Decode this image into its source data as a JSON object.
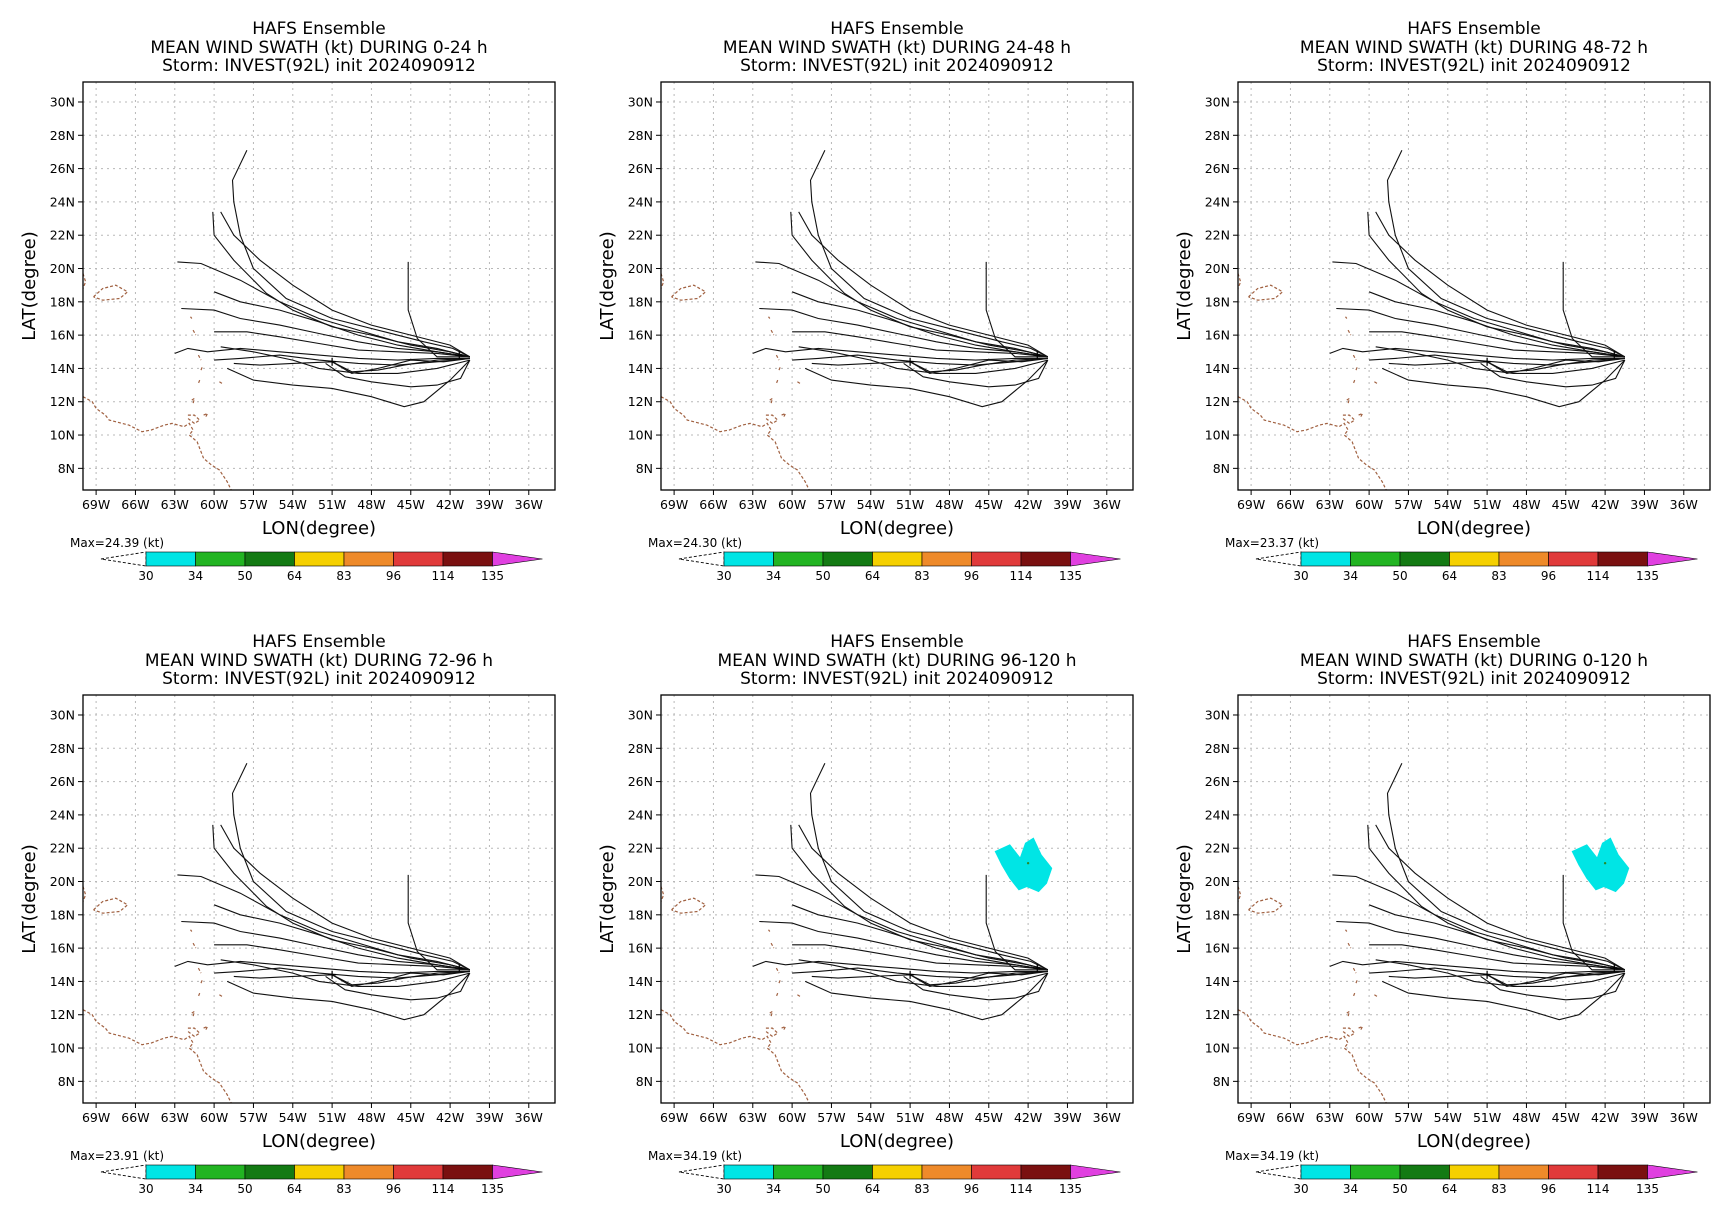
{
  "panels": [
    {
      "line1": "HAFS Ensemble",
      "line2": "MEAN WIND SWATH (kt) DURING  0-24 h",
      "line3": "Storm: INVEST(92L) init 2024090912",
      "max_label": "Max=24.39 (kt)",
      "swath": false
    },
    {
      "line1": "HAFS Ensemble",
      "line2": "MEAN WIND SWATH (kt) DURING 24-48 h",
      "line3": "Storm: INVEST(92L) init 2024090912",
      "max_label": "Max=24.30 (kt)",
      "swath": false
    },
    {
      "line1": "HAFS Ensemble",
      "line2": "MEAN WIND SWATH (kt) DURING 48-72 h",
      "line3": "Storm: INVEST(92L) init 2024090912",
      "max_label": "Max=23.37 (kt)",
      "swath": false
    },
    {
      "line1": "HAFS Ensemble",
      "line2": "MEAN WIND SWATH (kt) DURING 72-96 h",
      "line3": "Storm: INVEST(92L) init 2024090912",
      "max_label": "Max=23.91 (kt)",
      "swath": false
    },
    {
      "line1": "HAFS Ensemble",
      "line2": "MEAN WIND SWATH (kt) DURING 96-120 h",
      "line3": "Storm: INVEST(92L) init 2024090912",
      "max_label": "Max=34.19 (kt)",
      "swath": true
    },
    {
      "line1": "HAFS Ensemble",
      "line2": "MEAN WIND SWATH (kt) DURING 0-120 h",
      "line3": "Storm: INVEST(92L) init 2024090912",
      "max_label": "Max=34.19 (kt)",
      "swath": true
    }
  ],
  "axes": {
    "xlabel": "LON(degree)",
    "ylabel": "LAT(degree)",
    "lon_ticks": [
      "69W",
      "66W",
      "63W",
      "60W",
      "57W",
      "54W",
      "51W",
      "48W",
      "45W",
      "42W",
      "39W",
      "36W"
    ],
    "lat_ticks": [
      "30N",
      "28N",
      "26N",
      "24N",
      "22N",
      "20N",
      "18N",
      "16N",
      "14N",
      "12N",
      "10N",
      "8N"
    ]
  },
  "colorbar": {
    "levels": [
      "30",
      "34",
      "50",
      "64",
      "83",
      "96",
      "114",
      "135"
    ],
    "colors": [
      "#00e5e5",
      "#22b422",
      "#137a13",
      "#f5d000",
      "#ee8a2a",
      "#e03a3a",
      "#7a1010"
    ],
    "overflow_color": "#e040e0"
  },
  "map_data": {
    "lon_range": [
      -70,
      -34
    ],
    "lat_range": [
      6.7,
      31.2
    ],
    "swath_color": "#00e5e5",
    "swath_polygon": [
      [
        -44.5,
        21.8
      ],
      [
        -43.4,
        22.2
      ],
      [
        -42.6,
        21.4
      ],
      [
        -42.2,
        22.3
      ],
      [
        -41.6,
        22.6
      ],
      [
        -41.0,
        21.6
      ],
      [
        -40.2,
        20.8
      ],
      [
        -40.6,
        19.9
      ],
      [
        -41.2,
        19.4
      ],
      [
        -42.1,
        19.7
      ],
      [
        -42.7,
        19.5
      ],
      [
        -43.4,
        20.2
      ],
      [
        -44.0,
        21.0
      ]
    ],
    "tracks": [
      [
        [
          -40.5,
          14.7
        ],
        [
          -41.8,
          15.2
        ],
        [
          -44,
          15.6
        ],
        [
          -47,
          16.2
        ],
        [
          -51,
          17.0
        ],
        [
          -54.5,
          18.2
        ],
        [
          -57,
          20.0
        ],
        [
          -58.0,
          22.0
        ],
        [
          -58.5,
          24.0
        ],
        [
          -58.6,
          25.3
        ],
        [
          -57.5,
          27.1
        ]
      ],
      [
        [
          -40.5,
          14.7
        ],
        [
          -42,
          15.4
        ],
        [
          -45,
          16.0
        ],
        [
          -48,
          16.6
        ],
        [
          -51,
          17.5
        ],
        [
          -54,
          19.0
        ],
        [
          -56.5,
          20.5
        ],
        [
          -58.5,
          22.0
        ],
        [
          -59.5,
          23.4
        ]
      ],
      [
        [
          -40.5,
          14.7
        ],
        [
          -42,
          15.0
        ],
        [
          -45,
          15.4
        ],
        [
          -48,
          16.0
        ],
        [
          -51,
          16.5
        ],
        [
          -54,
          17.5
        ],
        [
          -56,
          18.5
        ],
        [
          -58.5,
          20.5
        ],
        [
          -60.0,
          22.0
        ],
        [
          -60.1,
          23.4
        ]
      ],
      [
        [
          -40.5,
          14.7
        ],
        [
          -43,
          15.2
        ],
        [
          -46,
          15.6
        ],
        [
          -49,
          16.3
        ],
        [
          -52,
          17.0
        ],
        [
          -55,
          18.0
        ],
        [
          -58,
          19.3
        ],
        [
          -61,
          20.3
        ],
        [
          -62.8,
          20.4
        ]
      ],
      [
        [
          -40.5,
          14.7
        ],
        [
          -43,
          15.0
        ],
        [
          -46,
          15.4
        ],
        [
          -49,
          16.0
        ],
        [
          -52,
          16.8
        ],
        [
          -55,
          17.5
        ],
        [
          -58,
          18.0
        ],
        [
          -60,
          18.6
        ]
      ],
      [
        [
          -40.5,
          14.7
        ],
        [
          -43,
          15.0
        ],
        [
          -46,
          15.2
        ],
        [
          -49,
          15.6
        ],
        [
          -52,
          16.1
        ],
        [
          -55,
          16.6
        ],
        [
          -58,
          17.0
        ],
        [
          -60,
          17.5
        ],
        [
          -62.5,
          17.6
        ]
      ],
      [
        [
          -40.5,
          14.7
        ],
        [
          -43,
          14.9
        ],
        [
          -46,
          15.0
        ],
        [
          -49,
          15.1
        ],
        [
          -52,
          15.5
        ],
        [
          -55,
          15.9
        ],
        [
          -57.5,
          16.2
        ],
        [
          -60,
          16.2
        ]
      ],
      [
        [
          -40.5,
          14.6
        ],
        [
          -43,
          14.6
        ],
        [
          -46,
          14.5
        ],
        [
          -49,
          14.6
        ],
        [
          -52,
          14.8
        ],
        [
          -55,
          15.0
        ],
        [
          -58,
          15.2
        ],
        [
          -60.5,
          15.0
        ],
        [
          -62,
          15.2
        ],
        [
          -63,
          14.9
        ]
      ],
      [
        [
          -40.5,
          14.6
        ],
        [
          -43,
          14.4
        ],
        [
          -46,
          14.2
        ],
        [
          -49,
          14.3
        ],
        [
          -52,
          14.5
        ],
        [
          -55,
          14.8
        ],
        [
          -58,
          14.6
        ],
        [
          -60,
          14.5
        ]
      ],
      [
        [
          -40.5,
          14.5
        ],
        [
          -43,
          14.0
        ],
        [
          -46,
          13.7
        ],
        [
          -49,
          13.7
        ],
        [
          -52,
          14.0
        ],
        [
          -54,
          14.5
        ],
        [
          -57,
          15.0
        ],
        [
          -59.5,
          15.3
        ]
      ],
      [
        [
          -40.5,
          14.5
        ],
        [
          -42,
          13.3
        ],
        [
          -44,
          12.0
        ],
        [
          -45.5,
          11.7
        ],
        [
          -48,
          12.3
        ],
        [
          -51,
          12.8
        ],
        [
          -54,
          13.0
        ],
        [
          -57,
          13.3
        ],
        [
          -59,
          14.0
        ]
      ],
      [
        [
          -40.5,
          14.5
        ],
        [
          -41.2,
          13.4
        ],
        [
          -43,
          13.0
        ],
        [
          -45,
          12.9
        ],
        [
          -48,
          13.2
        ],
        [
          -50,
          13.5
        ],
        [
          -51.5,
          14.3
        ]
      ],
      [
        [
          -40.5,
          14.6
        ],
        [
          -42.5,
          14.4
        ],
        [
          -45,
          14.5
        ],
        [
          -47.5,
          14.0
        ],
        [
          -49.5,
          13.7
        ],
        [
          -51,
          14.4
        ],
        [
          -54,
          14.3
        ],
        [
          -56.5,
          14.2
        ],
        [
          -58.5,
          14.3
        ]
      ],
      [
        [
          -40.5,
          14.7
        ],
        [
          -43,
          14.7
        ],
        [
          -44.5,
          15.8
        ],
        [
          -45.2,
          17.5
        ],
        [
          -45.2,
          20.4
        ]
      ],
      [
        [
          -40.5,
          14.6
        ],
        [
          -43,
          14.5
        ],
        [
          -45.5,
          14.2
        ],
        [
          -47.5,
          13.9
        ],
        [
          -49.5,
          13.8
        ],
        [
          -51,
          14.4
        ]
      ]
    ],
    "center_marks": [
      [
        -51.0,
        14.4
      ],
      [
        -41.3,
        14.8
      ]
    ],
    "coastlines": [
      [
        [
          -69.2,
          18.3
        ],
        [
          -68.5,
          18.8
        ],
        [
          -67.5,
          19.0
        ],
        [
          -66.6,
          18.6
        ],
        [
          -67.2,
          18.2
        ],
        [
          -68.5,
          18.1
        ],
        [
          -69.2,
          18.3
        ]
      ],
      [
        [
          -70,
          19.7
        ],
        [
          -69.8,
          19.2
        ],
        [
          -70,
          18.8
        ]
      ],
      [
        [
          -70,
          12.3
        ],
        [
          -69.3,
          12.0
        ],
        [
          -69.0,
          11.6
        ],
        [
          -68.3,
          11.2
        ],
        [
          -68.0,
          10.9
        ],
        [
          -66.5,
          10.6
        ],
        [
          -65.5,
          10.2
        ],
        [
          -64.8,
          10.3
        ],
        [
          -63.8,
          10.6
        ],
        [
          -63.2,
          10.7
        ],
        [
          -62.3,
          10.5
        ],
        [
          -61.9,
          10.7
        ],
        [
          -61.6,
          10.3
        ],
        [
          -61.9,
          10.0
        ],
        [
          -61.3,
          9.6
        ],
        [
          -60.8,
          8.6
        ],
        [
          -60.2,
          8.2
        ],
        [
          -59.6,
          7.9
        ],
        [
          -59.0,
          7.2
        ],
        [
          -58.7,
          6.7
        ]
      ],
      [
        [
          -62.0,
          11.2
        ],
        [
          -61.5,
          11.2
        ],
        [
          -61.1,
          10.9
        ],
        [
          -61.5,
          10.7
        ],
        [
          -62.0,
          11.0
        ]
      ],
      [
        [
          -60.8,
          11.2
        ],
        [
          -60.5,
          11.3
        ],
        [
          -60.7,
          11.0
        ]
      ],
      [
        [
          -61.7,
          12.1
        ],
        [
          -61.5,
          12.2
        ],
        [
          -61.6,
          11.9
        ]
      ],
      [
        [
          -61.1,
          13.3
        ],
        [
          -61.2,
          13.1
        ]
      ],
      [
        [
          -59.6,
          13.2
        ],
        [
          -59.4,
          13.1
        ]
      ],
      [
        [
          -61.0,
          13.9
        ],
        [
          -60.9,
          14.1
        ]
      ],
      [
        [
          -61.2,
          14.8
        ],
        [
          -61.0,
          14.5
        ]
      ],
      [
        [
          -61.6,
          16.3
        ],
        [
          -61.4,
          16.0
        ]
      ],
      [
        [
          -61.8,
          17.1
        ],
        [
          -61.7,
          17.0
        ]
      ]
    ]
  }
}
